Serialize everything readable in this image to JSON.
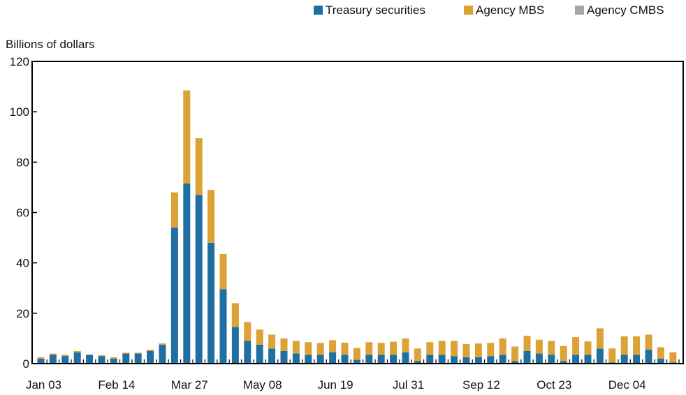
{
  "chart_data": {
    "type": "bar",
    "stacked": true,
    "ylabel": "Billions of dollars",
    "ylim": [
      0,
      120
    ],
    "yticks": [
      0,
      20,
      40,
      60,
      80,
      100,
      120
    ],
    "grid": false,
    "legend": {
      "placement": "top-right"
    },
    "x_tick_labels": [
      {
        "index": 0,
        "label": "Jan 03"
      },
      {
        "index": 6,
        "label": "Feb 14"
      },
      {
        "index": 12,
        "label": "Mar 27"
      },
      {
        "index": 18,
        "label": "May 08"
      },
      {
        "index": 24,
        "label": "Jun 19"
      },
      {
        "index": 30,
        "label": "Jul 31"
      },
      {
        "index": 36,
        "label": "Sep 12"
      },
      {
        "index": 42,
        "label": "Oct 23"
      },
      {
        "index": 48,
        "label": "Dec 04"
      }
    ],
    "series": [
      {
        "name": "Treasury securities",
        "color": "#1f6fa3",
        "values": [
          2,
          3.5,
          3,
          4.5,
          3.5,
          3,
          2,
          4,
          4,
          5,
          7.5,
          54,
          71.5,
          67,
          48,
          29.5,
          14.5,
          9,
          7.5,
          6,
          5,
          4,
          3.5,
          3.5,
          4.5,
          3.5,
          1.5,
          3.5,
          3.5,
          3.5,
          4.5,
          1,
          3.5,
          3.5,
          3,
          2.5,
          2.5,
          3,
          3.5,
          1,
          5,
          4,
          3.5,
          1,
          3.5,
          3.5,
          6,
          0.5,
          3.5,
          3.5,
          5.5,
          2,
          0.5
        ]
      },
      {
        "name": "Agency MBS",
        "color": "#dca236",
        "values": [
          0.5,
          0.5,
          0.5,
          0.5,
          0,
          0.3,
          0.5,
          0.3,
          0.3,
          0.5,
          0.5,
          14,
          37,
          22.5,
          21,
          14,
          9.5,
          7.5,
          6,
          5.5,
          5,
          5,
          5,
          4.7,
          4.8,
          4.8,
          4.7,
          5,
          4.7,
          5.2,
          5.5,
          5,
          5,
          5.5,
          6,
          5.3,
          5.5,
          5.2,
          6.5,
          5.8,
          6,
          5.5,
          5.5,
          6,
          7,
          5.3,
          8,
          5.5,
          7.3,
          7.3,
          6,
          4.5,
          4
        ]
      },
      {
        "name": "Agency CMBS",
        "color": "#a5a5a9",
        "values": [
          0,
          0,
          0,
          0,
          0,
          0,
          0,
          0,
          0,
          0,
          0,
          0,
          0,
          0,
          0,
          0,
          0,
          0,
          0,
          0,
          0,
          0,
          0,
          0,
          0,
          0,
          0,
          0,
          0,
          0,
          0,
          0,
          0,
          0,
          0,
          0,
          0,
          0,
          0,
          0,
          0,
          0,
          0,
          0,
          0,
          0,
          0,
          0,
          0,
          0,
          0,
          0,
          0
        ]
      }
    ]
  }
}
